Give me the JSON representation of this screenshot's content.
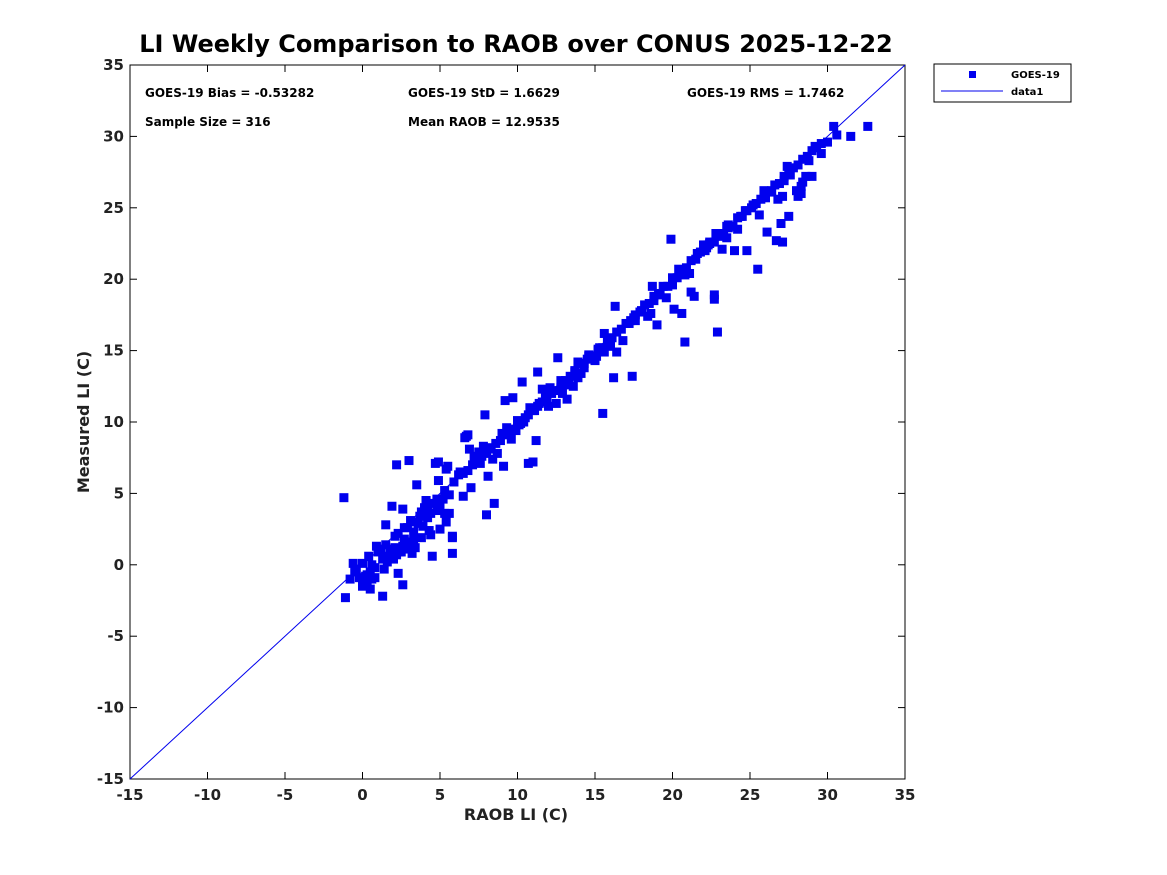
{
  "chart_data": {
    "type": "scatter",
    "title": "LI Weekly Comparison to RAOB over CONUS 2025-12-22",
    "xlabel": "RAOB LI (C)",
    "ylabel": "Measured LI (C)",
    "xlim": [
      -15,
      35
    ],
    "ylim": [
      -15,
      35
    ],
    "xticks": [
      "-15",
      "-10",
      "-5",
      "0",
      "5",
      "10",
      "15",
      "20",
      "25",
      "30",
      "35"
    ],
    "yticks": [
      "-15",
      "-10",
      "-5",
      "0",
      "5",
      "10",
      "15",
      "20",
      "25",
      "30",
      "35"
    ],
    "legend_position": "outside-top-right",
    "legend": [
      "GOES-19",
      "data1"
    ],
    "colors": {
      "series": "#0000ee",
      "line": "#0000ee"
    },
    "stats": {
      "bias": "GOES-19 Bias = -0.53282",
      "std": "GOES-19 StD = 1.6629",
      "rms": "GOES-19 RMS = 1.7462",
      "sample": "Sample Size = 316",
      "mean": "Mean RAOB = 12.9535"
    },
    "series": [
      {
        "name": "GOES-19",
        "marker": "square",
        "x": [
          -1.1,
          -0.8,
          -0.6,
          -0.4,
          -0.2,
          0.0,
          0.2,
          0.3,
          0.5,
          0.6,
          0.8,
          1.0,
          1.2,
          1.3,
          1.5,
          1.6,
          1.8,
          1.9,
          2.0,
          2.2,
          2.3,
          2.4,
          2.6,
          2.8,
          3.0,
          3.2,
          3.4,
          -1.2,
          0.5,
          1.3,
          1.5,
          1.9,
          2.3,
          2.6,
          2.9,
          3.1,
          3.3,
          3.6,
          3.8,
          4.0,
          4.2,
          4.4,
          4.6,
          4.8,
          5.0,
          5.2,
          5.4,
          5.6,
          5.8,
          2.6,
          3.5,
          4.1,
          4.5,
          4.9,
          5.3,
          5.8,
          4.7,
          6.3,
          6.6,
          6.9,
          7.2,
          7.5,
          7.8,
          8.1,
          8.4,
          8.7,
          9.0,
          9.3,
          9.6,
          9.9,
          10.2,
          10.5,
          10.8,
          11.1,
          11.4,
          5.4,
          6.5,
          7.0,
          7.6,
          8.0,
          8.5,
          9.1,
          10.0,
          10.7,
          11.0,
          11.2,
          11.8,
          12.1,
          12.5,
          12.9,
          13.2,
          13.6,
          13.9,
          14.3,
          14.6,
          15.0,
          15.3,
          15.6,
          12.0,
          12.8,
          13.3,
          13.7,
          14.1,
          14.5,
          15.2,
          15.6,
          16.0,
          16.4,
          16.8,
          17.2,
          17.6,
          18.0,
          18.4,
          18.8,
          19.2,
          19.6,
          20.0,
          20.4,
          20.8,
          15.5,
          16.2,
          17.4,
          18.6,
          19.0,
          20.1,
          20.8,
          21.2,
          21.6,
          22.0,
          22.4,
          22.8,
          23.2,
          23.6,
          24.0,
          24.4,
          20.6,
          21.4,
          22.2,
          22.7,
          23.5,
          24.2,
          22.7,
          22.9,
          24.8,
          25.2,
          25.6,
          26.0,
          26.4,
          26.8,
          27.2,
          27.6,
          28.0,
          28.4,
          28.8,
          29.2,
          29.6,
          30.0,
          30.4,
          25.5,
          26.1,
          26.7,
          27.1,
          27.5,
          28.3,
          31.5,
          32.6,
          27.0,
          27.4,
          26.0,
          28.1,
          28.6,
          29.0,
          1.0,
          1.6,
          2.1,
          2.5,
          3.8,
          4.3,
          0.3,
          0.8,
          1.4,
          2.0,
          2.7,
          3.3,
          3.9,
          4.4,
          5.0,
          5.6,
          6.2,
          6.8,
          7.4,
          8.0,
          8.6,
          9.2,
          9.8,
          10.4,
          11.0,
          11.6,
          12.2,
          12.8,
          13.4,
          14.0,
          14.6,
          15.2,
          15.8,
          16.4,
          17.0,
          17.6,
          18.2,
          18.8,
          19.4,
          20.0,
          20.6,
          21.2,
          21.8,
          22.4,
          23.0,
          23.6,
          24.2,
          24.8,
          25.4,
          26.0,
          26.6,
          27.2,
          27.8,
          28.4,
          29.0,
          29.6,
          -0.5,
          0.0,
          0.4,
          0.9,
          1.5,
          2.1,
          2.7,
          3.2,
          3.7,
          4.2,
          4.8,
          5.3,
          5.9,
          6.5,
          7.1,
          7.7,
          8.3,
          8.9,
          9.5,
          10.1,
          10.7,
          11.3,
          11.9,
          12.5,
          13.1,
          13.7,
          14.3,
          14.9,
          15.5,
          16.1,
          16.7,
          17.3,
          17.9,
          18.5,
          19.1,
          19.7,
          20.3,
          20.9,
          21.5,
          22.1,
          22.7,
          23.3,
          23.9,
          24.5,
          25.1,
          25.7,
          26.3,
          26.9,
          27.5,
          28.1,
          28.7,
          29.3,
          30.6,
          2.2,
          4.9,
          5.8,
          6.8,
          7.9,
          9.2,
          10.3,
          11.6,
          12.6,
          13.9,
          15.1,
          16.3,
          17.5,
          18.7,
          19.9,
          21.1,
          22.3,
          23.5,
          24.7,
          25.9,
          27.1,
          28.3,
          0.6,
          1.8,
          3.0,
          4.1,
          5.5,
          6.7,
          8.2,
          9.7,
          11.3
        ],
        "y": [
          -2.3,
          -1.0,
          0.1,
          -0.3,
          -0.9,
          -1.5,
          -0.8,
          -1.2,
          -0.5,
          -1.0,
          -0.2,
          0.9,
          1.1,
          0.4,
          0.6,
          0.2,
          0.8,
          1.0,
          0.5,
          0.7,
          -0.6,
          0.9,
          1.3,
          1.6,
          1.1,
          0.8,
          1.2,
          4.7,
          -1.7,
          -2.2,
          2.8,
          4.1,
          2.2,
          3.9,
          2.6,
          3.1,
          1.7,
          2.9,
          1.9,
          4.0,
          3.3,
          2.1,
          4.3,
          3.8,
          2.5,
          4.6,
          3.0,
          3.6,
          1.9,
          -1.4,
          5.6,
          4.5,
          0.6,
          5.9,
          3.6,
          0.8,
          7.1,
          6.5,
          8.9,
          8.1,
          7.6,
          7.9,
          8.3,
          6.2,
          7.4,
          7.8,
          9.2,
          9.6,
          8.8,
          9.4,
          9.9,
          10.3,
          11.0,
          10.8,
          11.3,
          6.7,
          4.8,
          5.4,
          7.1,
          3.5,
          4.3,
          6.9,
          10.1,
          7.1,
          7.2,
          8.7,
          11.8,
          12.4,
          11.3,
          12.0,
          11.6,
          12.5,
          13.1,
          13.8,
          14.6,
          14.3,
          15.2,
          14.9,
          11.1,
          12.9,
          12.6,
          13.6,
          13.4,
          14.4,
          15.1,
          16.2,
          15.3,
          14.9,
          15.7,
          16.9,
          17.1,
          17.8,
          17.4,
          18.5,
          18.9,
          18.7,
          19.6,
          20.7,
          20.3,
          10.6,
          13.1,
          13.2,
          17.6,
          16.8,
          17.9,
          15.6,
          19.1,
          21.8,
          22.4,
          22.6,
          23.2,
          22.1,
          23.8,
          22.0,
          24.4,
          17.6,
          18.8,
          22.2,
          18.9,
          23.7,
          23.5,
          18.6,
          16.3,
          22.0,
          25.2,
          24.5,
          25.8,
          26.2,
          25.6,
          26.9,
          27.3,
          26.2,
          26.8,
          28.3,
          29.3,
          28.8,
          29.6,
          30.7,
          20.7,
          23.3,
          22.7,
          22.6,
          24.4,
          26.0,
          30.0,
          30.7,
          23.9,
          27.9,
          25.7,
          25.8,
          27.2,
          27.2,
          1.0,
          0.5,
          1.2,
          0.9,
          3.7,
          2.4,
          -0.7,
          -0.9,
          -0.3,
          0.4,
          1.8,
          2.3,
          2.7,
          3.6,
          4.1,
          4.9,
          6.3,
          6.6,
          7.2,
          7.8,
          8.5,
          9.1,
          9.5,
          10.0,
          10.8,
          11.4,
          12.0,
          12.4,
          13.2,
          14.1,
          14.7,
          15.0,
          15.6,
          16.3,
          16.9,
          17.5,
          18.2,
          18.8,
          19.5,
          20.1,
          20.6,
          21.3,
          21.9,
          22.5,
          23.0,
          23.6,
          24.3,
          24.8,
          25.3,
          26.0,
          26.6,
          27.2,
          27.8,
          28.4,
          29.0,
          29.5,
          -0.5,
          0.1,
          0.6,
          1.3,
          1.4,
          2.0,
          2.6,
          3.0,
          3.4,
          3.9,
          4.6,
          5.2,
          5.8,
          6.4,
          7.0,
          7.6,
          8.1,
          8.7,
          9.3,
          9.8,
          10.5,
          11.1,
          11.6,
          12.2,
          12.9,
          13.5,
          14.1,
          14.6,
          15.2,
          15.9,
          16.5,
          17.1,
          17.7,
          18.3,
          19.0,
          19.5,
          20.1,
          20.8,
          21.4,
          22.0,
          22.6,
          23.2,
          23.7,
          24.4,
          25.0,
          25.6,
          26.1,
          26.7,
          27.3,
          28.0,
          28.6,
          29.2,
          30.1,
          7.0,
          7.2,
          2.0,
          9.1,
          10.5,
          11.5,
          12.8,
          12.3,
          14.5,
          14.2,
          14.6,
          18.1,
          17.3,
          19.5,
          22.8,
          20.4,
          22.4,
          22.9,
          24.8,
          26.2,
          25.8,
          26.5,
          0.0,
          1.1,
          7.3,
          4.5,
          6.9,
          9.0,
          8.2,
          11.7,
          13.5
        ]
      },
      {
        "name": "data1",
        "type": "line",
        "x": [
          -15,
          35
        ],
        "y": [
          -15,
          35
        ]
      }
    ]
  }
}
